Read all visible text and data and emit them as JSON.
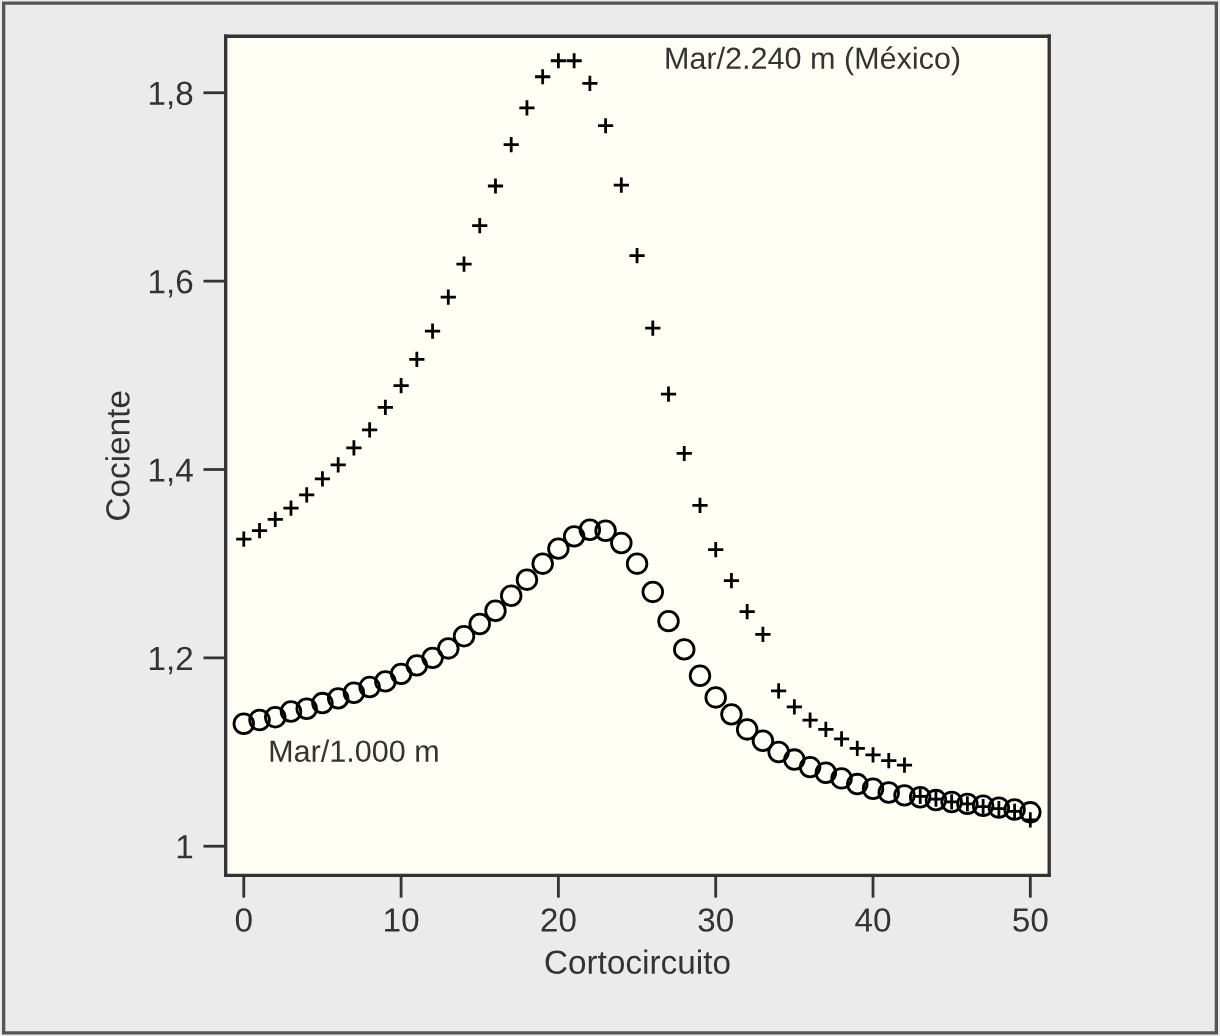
{
  "chart_data": {
    "type": "scatter",
    "xlabel": "Cortocircuito",
    "ylabel": "Cociente",
    "xlim": [
      -1.15,
      51.2
    ],
    "ylim": [
      0.969,
      1.86
    ],
    "xticks": [
      0,
      10,
      20,
      30,
      40,
      50
    ],
    "yticks": [
      {
        "value": 1,
        "label": "1"
      },
      {
        "value": 1.2,
        "label": "1,2"
      },
      {
        "value": 1.4,
        "label": "1,4"
      },
      {
        "value": 1.6,
        "label": "1,6"
      },
      {
        "value": 1.8,
        "label": "1,8"
      }
    ],
    "grid": false,
    "legend": false,
    "x": [
      0,
      1,
      2,
      3,
      4,
      5,
      6,
      7,
      8,
      9,
      10,
      11,
      12,
      13,
      14,
      15,
      16,
      17,
      18,
      19,
      20,
      21,
      22,
      23,
      24,
      25,
      26,
      27,
      28,
      29,
      30,
      31,
      32,
      33,
      34,
      35,
      36,
      37,
      38,
      39,
      40,
      41,
      42,
      43,
      44,
      45,
      46,
      47,
      48,
      49,
      50
    ],
    "series": [
      {
        "name": "Mar/2.240 m (México)",
        "color": "#000000",
        "marker": "cross",
        "values": [
          1.326,
          1.335,
          1.347,
          1.359,
          1.373,
          1.39,
          1.405,
          1.423,
          1.442,
          1.466,
          1.489,
          1.517,
          1.547,
          1.583,
          1.618,
          1.659,
          1.701,
          1.745,
          1.784,
          1.817,
          1.834,
          1.834,
          1.81,
          1.765,
          1.702,
          1.627,
          1.55,
          1.48,
          1.417,
          1.362,
          1.315,
          1.282,
          1.249,
          1.225,
          1.165,
          1.148,
          1.134,
          1.124,
          1.114,
          1.104,
          1.097,
          1.091,
          1.086,
          1.053,
          1.05,
          1.047,
          1.045,
          1.042,
          1.04,
          1.037,
          1.028
        ]
      },
      {
        "name": "Mar/1.000 m",
        "color": "#000000",
        "marker": "circle",
        "values": [
          1.13,
          1.134,
          1.137,
          1.143,
          1.146,
          1.152,
          1.157,
          1.163,
          1.169,
          1.175,
          1.183,
          1.192,
          1.2,
          1.21,
          1.223,
          1.236,
          1.25,
          1.266,
          1.283,
          1.3,
          1.316,
          1.329,
          1.336,
          1.335,
          1.322,
          1.3,
          1.27,
          1.239,
          1.209,
          1.181,
          1.158,
          1.14,
          1.124,
          1.112,
          1.1,
          1.092,
          1.084,
          1.078,
          1.072,
          1.066,
          1.061,
          1.057,
          1.054,
          1.052,
          1.049,
          1.047,
          1.045,
          1.043,
          1.041,
          1.039,
          1.036
        ]
      }
    ]
  }
}
